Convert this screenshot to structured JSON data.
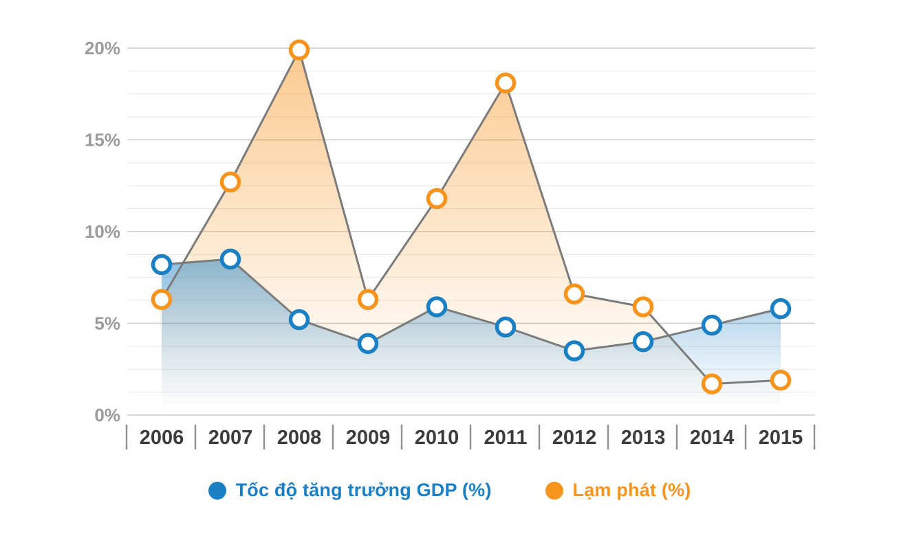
{
  "chart_data": {
    "type": "line",
    "title": "",
    "xlabel": "",
    "ylabel": "",
    "x": [
      "2006",
      "2007",
      "2008",
      "2009",
      "2010",
      "2011",
      "2012",
      "2013",
      "2014",
      "2015"
    ],
    "series": [
      {
        "name": "Tốc độ tăng trưởng GDP (%)",
        "color": "#1b7fc4",
        "values": [
          8.2,
          8.5,
          5.2,
          3.9,
          5.9,
          4.8,
          3.5,
          4.0,
          4.9,
          5.8
        ]
      },
      {
        "name": "Lạm phát (%)",
        "color": "#f7941e",
        "values": [
          6.3,
          12.7,
          19.9,
          6.3,
          11.8,
          18.1,
          6.6,
          5.9,
          1.7,
          1.9
        ]
      }
    ],
    "ylim": [
      0,
      20
    ],
    "yticks": [
      {
        "value": 0,
        "label": "0%"
      },
      {
        "value": 5,
        "label": "5%"
      },
      {
        "value": 10,
        "label": "10%"
      },
      {
        "value": 15,
        "label": "15%"
      },
      {
        "value": 20,
        "label": "20%"
      }
    ],
    "minor_grid_step": 1.25,
    "grid": true,
    "legend_position": "bottom",
    "style": {
      "line_color": "#7b7b7b",
      "major_grid_color": "#c9c9c9",
      "minor_grid_color": "#e5e5e5",
      "y_label_color": "#9b9b9b",
      "x_label_color": "#3c3c3c",
      "tick_color": "#8f8f8f",
      "marker_fill": "#ffffff"
    }
  }
}
